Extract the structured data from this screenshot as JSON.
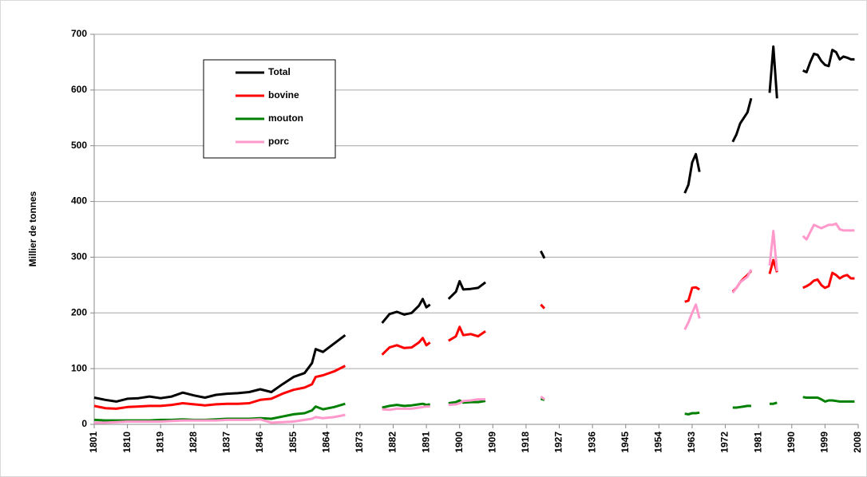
{
  "chart_data": {
    "type": "line",
    "y_label": "Millier de tonnes",
    "xlim": [
      1801,
      2008
    ],
    "xticks": [
      1801,
      1810,
      1819,
      1828,
      1837,
      1846,
      1855,
      1864,
      1873,
      1882,
      1891,
      1900,
      1909,
      1918,
      1927,
      1936,
      1945,
      1954,
      1963,
      1972,
      1981,
      1990,
      1999,
      2008
    ],
    "ylim": [
      0,
      700
    ],
    "yticks": [
      0,
      100,
      200,
      300,
      400,
      500,
      600,
      700
    ],
    "grid": true,
    "legend": "upper left",
    "x": [
      1801,
      1804,
      1807,
      1810,
      1813,
      1816,
      1819,
      1822,
      1825,
      1828,
      1831,
      1834,
      1837,
      1840,
      1843,
      1846,
      1849,
      1852,
      1855,
      1858,
      1860,
      1861,
      1863,
      1866,
      1869,
      1875,
      1879,
      1881,
      1883,
      1885,
      1887,
      1889,
      1890,
      1891,
      1892,
      1895,
      1897,
      1899,
      1900,
      1901,
      1903,
      1905,
      1907,
      1915,
      1922,
      1923,
      1940,
      1961,
      1962,
      1963,
      1964,
      1965,
      1970,
      1974,
      1975,
      1976,
      1977,
      1978,
      1979,
      1982,
      1984,
      1985,
      1986,
      1990,
      1993,
      1994,
      1995,
      1996,
      1997,
      1998,
      1999,
      2000,
      2001,
      2002,
      2003,
      2004,
      2005,
      2006,
      2007
    ],
    "series": [
      {
        "name": "Total",
        "color": "#000000",
        "values": [
          48,
          44,
          41,
          46,
          47,
          50,
          47,
          50,
          57,
          52,
          48,
          53,
          55,
          56,
          58,
          63,
          58,
          72,
          85,
          92,
          110,
          135,
          130,
          145,
          160,
          null,
          182,
          198,
          202,
          197,
          200,
          213,
          225,
          210,
          215,
          null,
          225,
          238,
          257,
          242,
          243,
          245,
          255,
          null,
          311,
          298,
          null,
          415,
          430,
          470,
          485,
          453,
          null,
          507,
          520,
          540,
          550,
          560,
          585,
          null,
          595,
          678,
          585,
          null,
          635,
          632,
          650,
          665,
          663,
          652,
          645,
          643,
          672,
          668,
          655,
          660,
          658,
          655,
          655
        ]
      },
      {
        "name": "bovine",
        "color": "#ff0000",
        "values": [
          33,
          29,
          28,
          31,
          32,
          33,
          33,
          35,
          38,
          36,
          34,
          36,
          37,
          37,
          38,
          44,
          46,
          55,
          62,
          66,
          72,
          85,
          88,
          95,
          105,
          null,
          125,
          138,
          142,
          137,
          138,
          147,
          155,
          142,
          147,
          null,
          150,
          158,
          175,
          160,
          162,
          158,
          167,
          null,
          215,
          208,
          null,
          220,
          222,
          245,
          246,
          242,
          null,
          238,
          245,
          255,
          262,
          268,
          275,
          null,
          270,
          295,
          273,
          null,
          245,
          248,
          252,
          258,
          260,
          250,
          245,
          248,
          272,
          268,
          262,
          266,
          268,
          262,
          262
        ]
      },
      {
        "name": "mouton",
        "color": "#008000",
        "values": [
          8,
          7,
          7,
          7,
          7,
          7,
          8,
          8,
          9,
          8,
          8,
          9,
          10,
          10,
          10,
          11,
          10,
          14,
          18,
          20,
          25,
          32,
          27,
          31,
          37,
          null,
          30,
          33,
          35,
          33,
          34,
          36,
          37,
          35,
          36,
          null,
          38,
          40,
          43,
          39,
          40,
          40,
          42,
          null,
          46,
          44,
          null,
          19,
          18,
          20,
          20,
          21,
          null,
          30,
          30,
          31,
          32,
          33,
          33,
          null,
          37,
          37,
          39,
          null,
          49,
          48,
          48,
          48,
          48,
          45,
          41,
          43,
          43,
          42,
          41,
          41,
          41,
          41,
          41
        ]
      },
      {
        "name": "porc",
        "color": "#ff99cc",
        "values": [
          3,
          3,
          4,
          5,
          5,
          5,
          5,
          6,
          7,
          7,
          7,
          7,
          8,
          8,
          8,
          9,
          3,
          4,
          5,
          8,
          10,
          13,
          11,
          13,
          17,
          null,
          27,
          26,
          28,
          28,
          28,
          30,
          31,
          32,
          32,
          null,
          35,
          36,
          38,
          42,
          43,
          45,
          45,
          null,
          50,
          45,
          null,
          170,
          183,
          200,
          215,
          190,
          null,
          236,
          245,
          255,
          260,
          265,
          278,
          null,
          285,
          347,
          275,
          null,
          338,
          332,
          345,
          358,
          355,
          352,
          355,
          358,
          358,
          360,
          350,
          348,
          348,
          348,
          348
        ]
      }
    ]
  }
}
